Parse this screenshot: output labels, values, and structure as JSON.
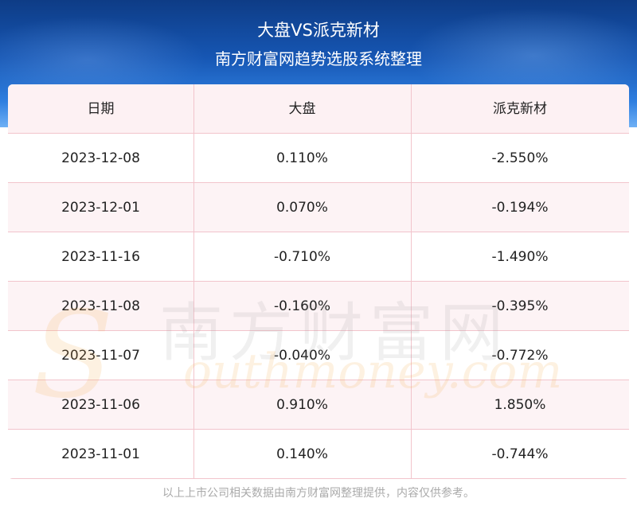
{
  "header": {
    "title": "大盘VS派克新材",
    "subtitle": "南方财富网趋势选股系统整理"
  },
  "table": {
    "columns": [
      "日期",
      "大盘",
      "派克新材"
    ],
    "rows": [
      [
        "2023-12-08",
        "0.110%",
        "-2.550%"
      ],
      [
        "2023-12-01",
        "0.070%",
        "-0.194%"
      ],
      [
        "2023-11-16",
        "-0.710%",
        "-1.490%"
      ],
      [
        "2023-11-08",
        "-0.160%",
        "-0.395%"
      ],
      [
        "2023-11-07",
        "-0.040%",
        "-0.772%"
      ],
      [
        "2023-11-06",
        "0.910%",
        "1.850%"
      ],
      [
        "2023-11-01",
        "0.140%",
        "-0.744%"
      ]
    ]
  },
  "watermark": {
    "cn": "南方财富网",
    "en_initial": "S",
    "en": "outhmoney.com"
  },
  "footer": "以上上市公司相关数据由南方财富网整理提供，内容仅供参考。"
}
